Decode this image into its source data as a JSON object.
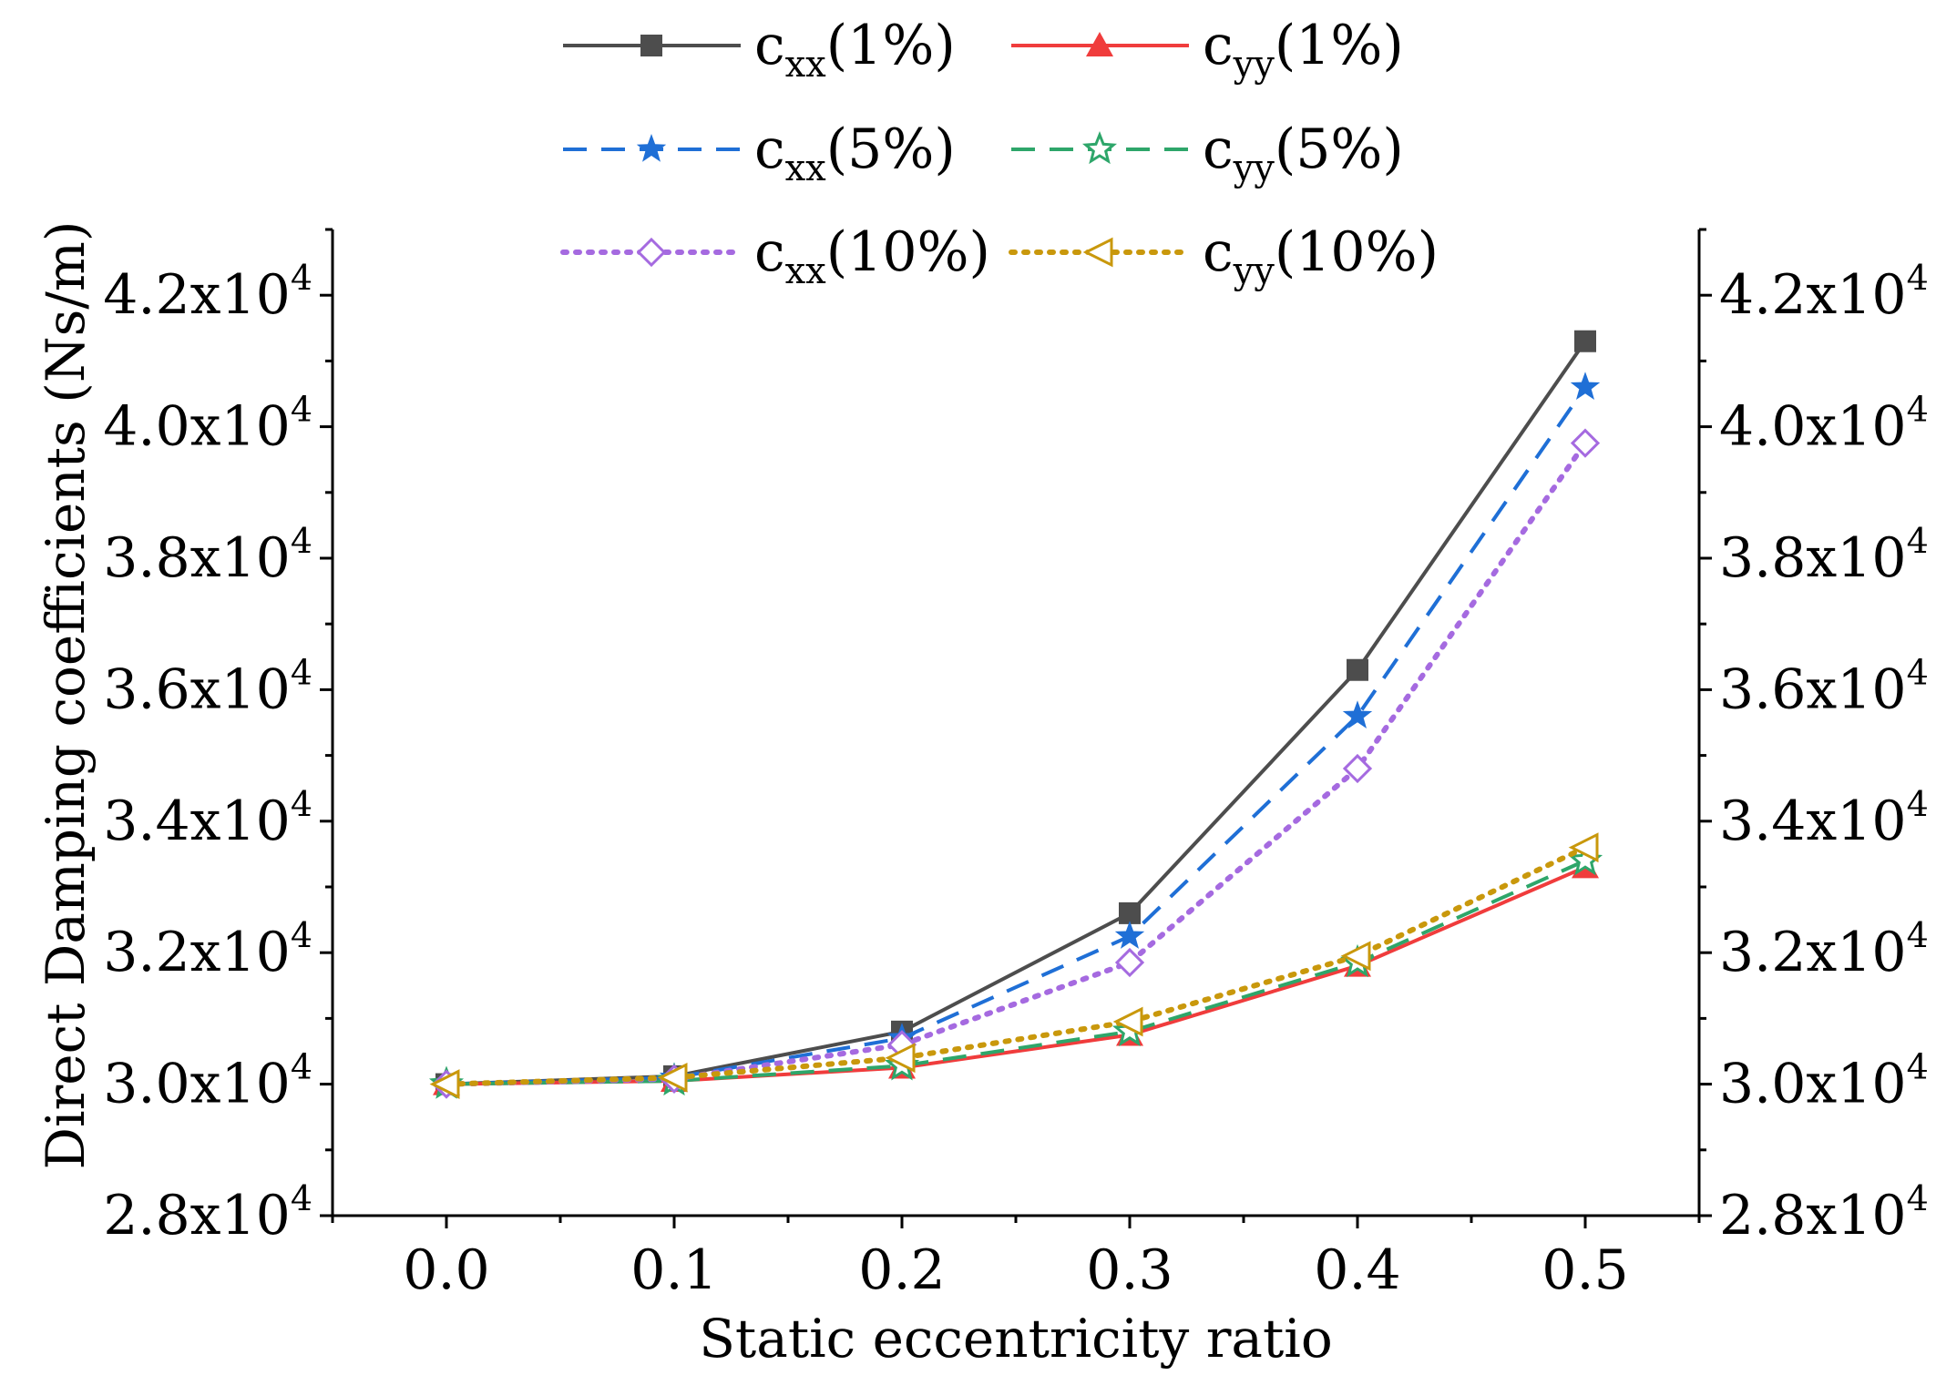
{
  "chart_data": {
    "type": "line",
    "title": "",
    "xlabel": "Static eccentricity ratio",
    "ylabel": "Direct Damping coefficients (Ns/m)",
    "xlim": [
      -0.05,
      0.55
    ],
    "ylim": [
      28000,
      43000
    ],
    "x": [
      0.0,
      0.1,
      0.2,
      0.3,
      0.4,
      0.5
    ],
    "x_tick_labels": [
      "0.0",
      "0.1",
      "0.2",
      "0.3",
      "0.4",
      "0.5"
    ],
    "y_ticks": [
      28000,
      30000,
      32000,
      34000,
      36000,
      38000,
      40000,
      42000
    ],
    "y_tick_labels": [
      {
        "mantissa": "2.8x10",
        "exp": "4"
      },
      {
        "mantissa": "3.0x10",
        "exp": "4"
      },
      {
        "mantissa": "3.2x10",
        "exp": "4"
      },
      {
        "mantissa": "3.4x10",
        "exp": "4"
      },
      {
        "mantissa": "3.6x10",
        "exp": "4"
      },
      {
        "mantissa": "3.8x10",
        "exp": "4"
      },
      {
        "mantissa": "4.0x10",
        "exp": "4"
      },
      {
        "mantissa": "4.2x10",
        "exp": "4"
      }
    ],
    "right_axis": true,
    "legend_position": "top",
    "series": [
      {
        "name": "cxx(1%)",
        "base": "c",
        "sub": "xx",
        "suffix": "(1%)",
        "color": "#4d4d4d",
        "dash": "solid",
        "marker": "square-filled",
        "values": [
          30000,
          30120,
          30800,
          32600,
          36300,
          41300
        ]
      },
      {
        "name": "cyy(1%)",
        "base": "c",
        "sub": "yy",
        "suffix": "(1%)",
        "color": "#f03c3c",
        "dash": "solid",
        "marker": "triangle-filled",
        "values": [
          30000,
          30050,
          30250,
          30750,
          31800,
          33300
        ]
      },
      {
        "name": "cxx(5%)",
        "base": "c",
        "sub": "xx",
        "suffix": "(5%)",
        "color": "#1f6fd6",
        "dash": "dashed",
        "marker": "star-filled",
        "values": [
          30000,
          30100,
          30700,
          32250,
          35600,
          40600
        ]
      },
      {
        "name": "cyy(5%)",
        "base": "c",
        "sub": "yy",
        "suffix": "(5%)",
        "color": "#2ea66a",
        "dash": "dashed",
        "marker": "star-open",
        "values": [
          30000,
          30050,
          30280,
          30800,
          31850,
          33400
        ]
      },
      {
        "name": "cxx(10%)",
        "base": "c",
        "sub": "xx",
        "suffix": "(10%)",
        "color": "#a56ae0",
        "dash": "dotted",
        "marker": "diamond-open",
        "values": [
          30000,
          30080,
          30600,
          31850,
          34800,
          39750
        ]
      },
      {
        "name": "cyy(10%)",
        "base": "c",
        "sub": "yy",
        "suffix": "(10%)",
        "color": "#c9980c",
        "dash": "dotted",
        "marker": "triangle-left-open",
        "values": [
          30000,
          30100,
          30400,
          30950,
          31950,
          33600
        ]
      }
    ]
  }
}
